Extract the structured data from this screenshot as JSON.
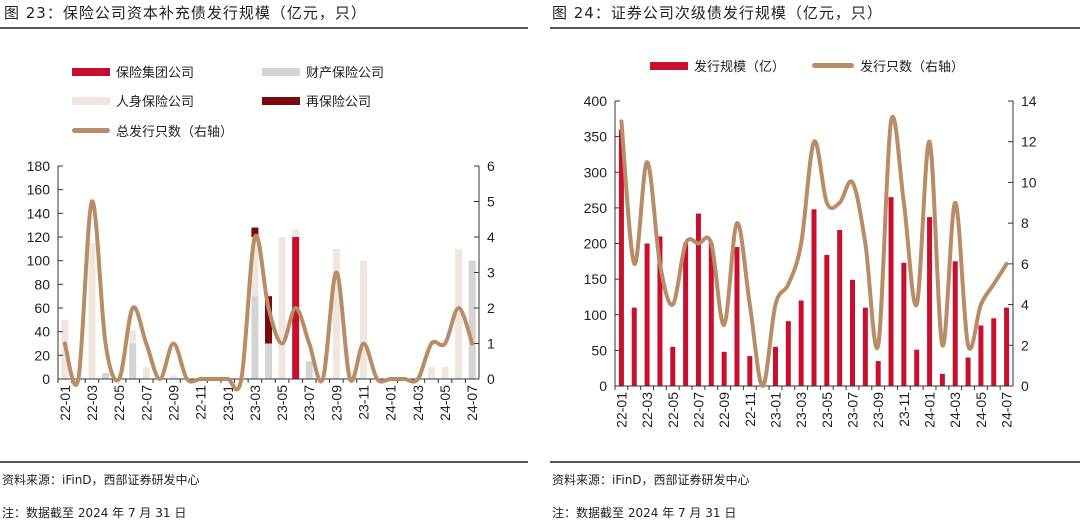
{
  "colors": {
    "group": "#c8102e",
    "property": "#d4d4d4",
    "life": "#efe6dd",
    "reins": "#7a0a10",
    "line": "#b98c68",
    "bar": "#c8102e"
  },
  "left": {
    "title": "图 23：保险公司资本补充债发行规模（亿元，只）",
    "source": "资料来源：iFinD，西部证券研发中心",
    "note": "注：数据截至 2024 年 7 月 31 日",
    "legend": [
      "保险集团公司",
      "财产保险公司",
      "人身保险公司",
      "再保险公司",
      "总发行只数（右轴）"
    ]
  },
  "right": {
    "title": "图 24：证券公司次级债发行规模（亿元，只）",
    "source": "资料来源：iFinD，西部证券研发中心",
    "note": "注：数据截至 2024 年 7 月 31 日",
    "legend": [
      "发行规模（亿）",
      "发行只数（右轴）"
    ]
  },
  "chart_data": [
    {
      "type": "bar",
      "stacked": true,
      "categories": [
        "22-01",
        "22-02",
        "22-03",
        "22-04",
        "22-05",
        "22-06",
        "22-07",
        "22-08",
        "22-09",
        "22-10",
        "22-11",
        "22-12",
        "23-01",
        "23-02",
        "23-03",
        "23-04",
        "23-05",
        "23-06",
        "23-07",
        "23-08",
        "23-09",
        "23-10",
        "23-11",
        "23-12",
        "24-01",
        "24-02",
        "24-03",
        "24-04",
        "24-05",
        "24-06",
        "24-07"
      ],
      "tick_labels": [
        "22-01",
        "22-03",
        "22-05",
        "22-07",
        "22-09",
        "22-11",
        "23-01",
        "23-03",
        "23-05",
        "23-07",
        "23-09",
        "23-11",
        "24-01",
        "24-03",
        "24-05",
        "24-07"
      ],
      "series": [
        {
          "name": "财产保险公司",
          "color_key": "property",
          "values": [
            0,
            0,
            0,
            5,
            0,
            30,
            0,
            0,
            0,
            0,
            0,
            0,
            0,
            0,
            70,
            30,
            0,
            0,
            15,
            0,
            0,
            0,
            0,
            0,
            0,
            0,
            0,
            0,
            0,
            0,
            100
          ]
        },
        {
          "name": "保险集团公司",
          "color_key": "group",
          "values": [
            0,
            0,
            0,
            0,
            0,
            0,
            0,
            0,
            0,
            0,
            0,
            0,
            0,
            0,
            0,
            0,
            0,
            120,
            0,
            0,
            0,
            0,
            0,
            0,
            0,
            0,
            0,
            0,
            0,
            0,
            0
          ]
        },
        {
          "name": "人身保险公司",
          "color_key": "life",
          "values": [
            50,
            0,
            115,
            0,
            0,
            11,
            10,
            0,
            3,
            0,
            0,
            0,
            0,
            0,
            50,
            0,
            120,
            6,
            0,
            0,
            110,
            0,
            100,
            0,
            0,
            0,
            0,
            10,
            10,
            110,
            0
          ]
        },
        {
          "name": "再保险公司",
          "color_key": "reins",
          "values": [
            0,
            0,
            0,
            0,
            0,
            0,
            0,
            0,
            0,
            0,
            0,
            0,
            0,
            0,
            8,
            40,
            0,
            0,
            0,
            0,
            0,
            0,
            0,
            0,
            0,
            0,
            0,
            0,
            0,
            0,
            0
          ]
        }
      ],
      "line": {
        "name": "总发行只数（右轴）",
        "axis": "right",
        "values": [
          1,
          0,
          5,
          1,
          0,
          2,
          1,
          0,
          1,
          0,
          0,
          0,
          0,
          0,
          4,
          2,
          1,
          2,
          1,
          0,
          3,
          0,
          1,
          0,
          0,
          0,
          0,
          1,
          1,
          2,
          1
        ]
      },
      "ylim": [
        0,
        180
      ],
      "yticks": [
        0,
        20,
        40,
        60,
        80,
        100,
        120,
        140,
        160,
        180
      ],
      "y2lim": [
        0,
        6
      ],
      "y2ticks": [
        0,
        1,
        2,
        3,
        4,
        5,
        6
      ],
      "legend_placement": "top"
    },
    {
      "type": "bar",
      "categories": [
        "22-01",
        "22-02",
        "22-03",
        "22-04",
        "22-05",
        "22-06",
        "22-07",
        "22-08",
        "22-09",
        "22-10",
        "22-11",
        "22-12",
        "23-01",
        "23-02",
        "23-03",
        "23-04",
        "23-05",
        "23-06",
        "23-07",
        "23-08",
        "23-09",
        "23-10",
        "23-11",
        "23-12",
        "24-01",
        "24-02",
        "24-03",
        "24-04",
        "24-05",
        "24-06",
        "24-07"
      ],
      "tick_labels": [
        "22-01",
        "22-03",
        "22-05",
        "22-07",
        "22-09",
        "22-11",
        "23-01",
        "23-03",
        "23-05",
        "23-07",
        "23-09",
        "23-11",
        "24-01",
        "24-03",
        "24-05",
        "24-07"
      ],
      "series": [
        {
          "name": "发行规模（亿）",
          "color_key": "bar",
          "values": [
            360,
            110,
            200,
            210,
            55,
            200,
            242,
            200,
            48,
            195,
            42,
            0,
            55,
            91,
            120,
            248,
            184,
            219,
            149,
            110,
            35,
            265,
            173,
            51,
            237,
            17,
            175,
            40,
            85,
            95,
            110
          ]
        }
      ],
      "line": {
        "name": "发行只数（右轴）",
        "axis": "right",
        "values": [
          13,
          6,
          11,
          6,
          4,
          7,
          7,
          7,
          3,
          8,
          4,
          0,
          4,
          5,
          7,
          12,
          9,
          9,
          10,
          7,
          2,
          13,
          9,
          4,
          12,
          2,
          9,
          2,
          4,
          5,
          6
        ]
      },
      "ylim": [
        0,
        400
      ],
      "yticks": [
        0,
        50,
        100,
        150,
        200,
        250,
        300,
        350,
        400
      ],
      "y2lim": [
        0,
        14
      ],
      "y2ticks": [
        0,
        2,
        4,
        6,
        8,
        10,
        12,
        14
      ],
      "legend_placement": "top"
    }
  ]
}
